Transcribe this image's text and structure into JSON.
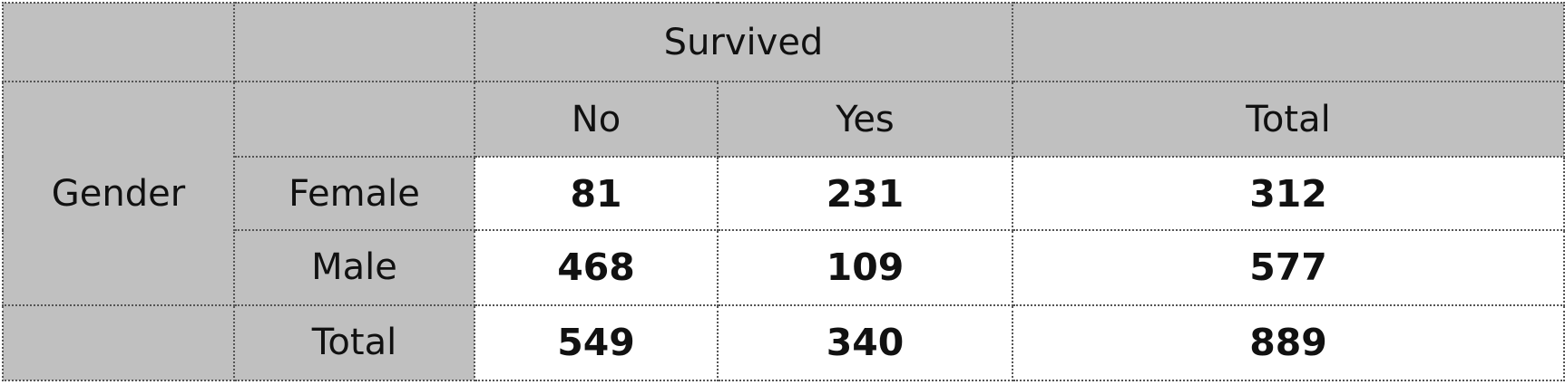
{
  "chart_data": {
    "type": "table",
    "column_group_header": "Survived",
    "row_group_header": "Gender",
    "columns": [
      "No",
      "Yes",
      "Total"
    ],
    "rows": [
      {
        "label": "Female",
        "values": [
          81,
          231,
          312
        ]
      },
      {
        "label": "Male",
        "values": [
          468,
          109,
          577
        ]
      }
    ],
    "totals": {
      "label": "Total",
      "values": [
        549,
        340,
        889
      ]
    }
  }
}
